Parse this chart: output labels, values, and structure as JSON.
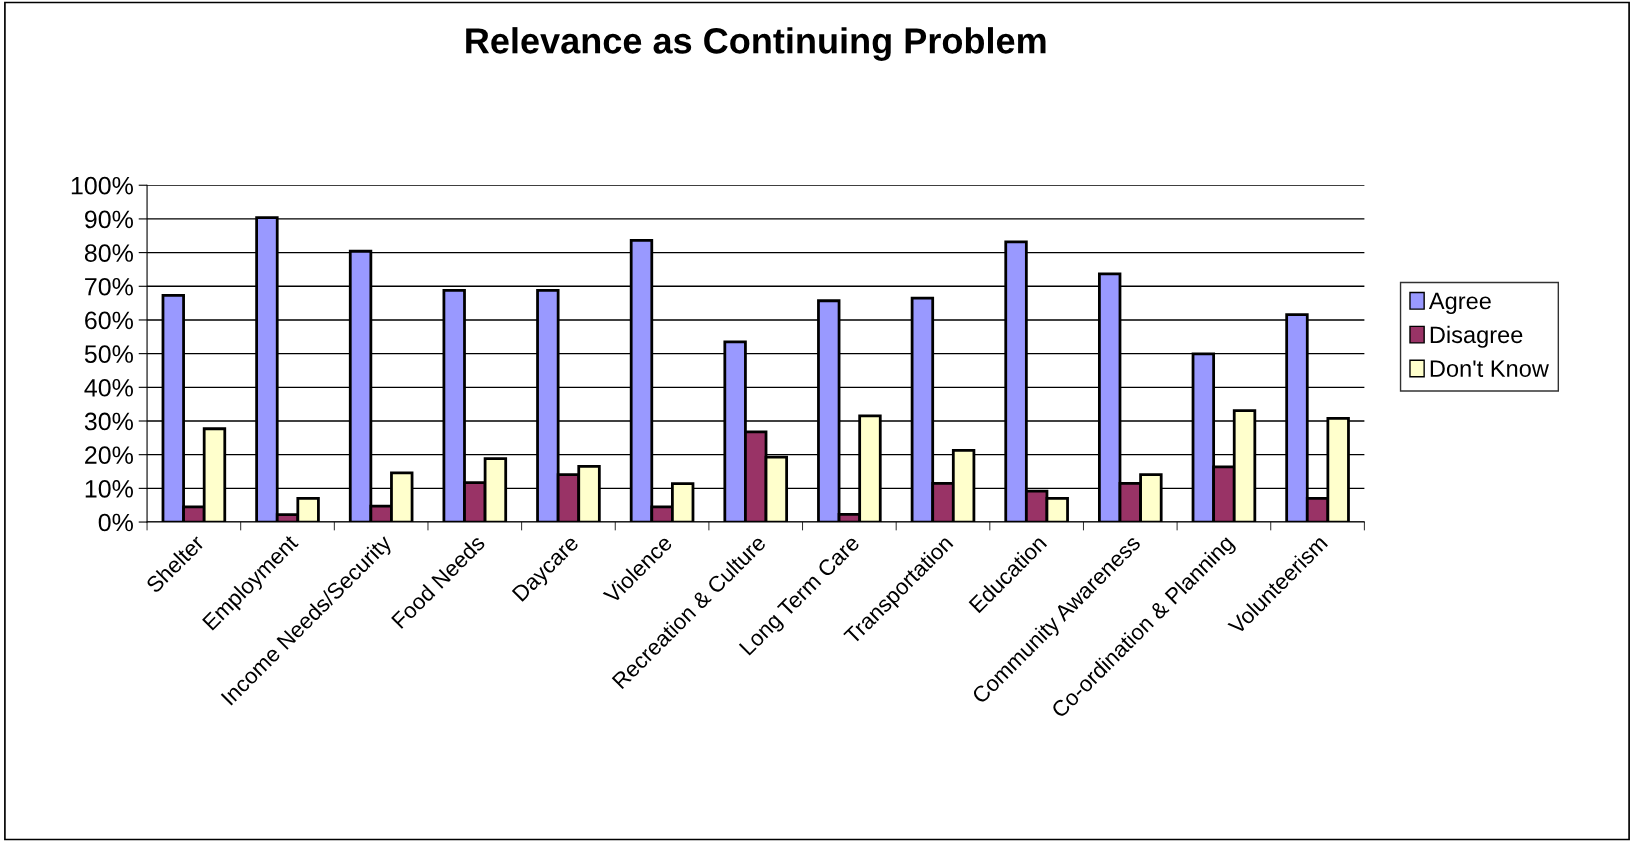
{
  "chart_data": {
    "type": "bar",
    "title": "Relevance as Continuing Problem",
    "categories": [
      "Shelter",
      "Employment",
      "Income Needs/Security",
      "Food Needs",
      "Daycare",
      "Violence",
      "Recreation & Culture",
      "Long Term Care",
      "Transportation",
      "Education",
      "Community Awareness",
      "Co-ordination & Planning",
      "Volunteerism"
    ],
    "series": [
      {
        "name": "Agree",
        "color": "#9999ff",
        "values": [
          67.3,
          90.4,
          80.4,
          68.8,
          68.8,
          83.6,
          53.5,
          65.7,
          66.5,
          83.2,
          73.7,
          49.9,
          61.6
        ]
      },
      {
        "name": "Disagree",
        "color": "#993366",
        "values": [
          4.5,
          2.2,
          4.7,
          11.7,
          14.1,
          4.5,
          26.8,
          2.3,
          11.5,
          9.2,
          11.5,
          16.4,
          7.0
        ]
      },
      {
        "name": "Don't Know",
        "color": "#ffffcc",
        "values": [
          27.7,
          7.0,
          14.6,
          18.8,
          16.5,
          11.4,
          19.3,
          31.5,
          21.3,
          7.0,
          14.1,
          33.1,
          30.8
        ]
      }
    ],
    "ylim": [
      0,
      100
    ],
    "yticks": [
      {
        "value": 0,
        "label": "0%"
      },
      {
        "value": 10,
        "label": "10%"
      },
      {
        "value": 20,
        "label": "20%"
      },
      {
        "value": 30,
        "label": "30%"
      },
      {
        "value": 40,
        "label": "40%"
      },
      {
        "value": 50,
        "label": "50%"
      },
      {
        "value": 60,
        "label": "60%"
      },
      {
        "value": 70,
        "label": "70%"
      },
      {
        "value": 80,
        "label": "80%"
      },
      {
        "value": 90,
        "label": "90%"
      },
      {
        "value": 100,
        "label": "100%"
      }
    ],
    "grid": "y",
    "legend": "right"
  }
}
